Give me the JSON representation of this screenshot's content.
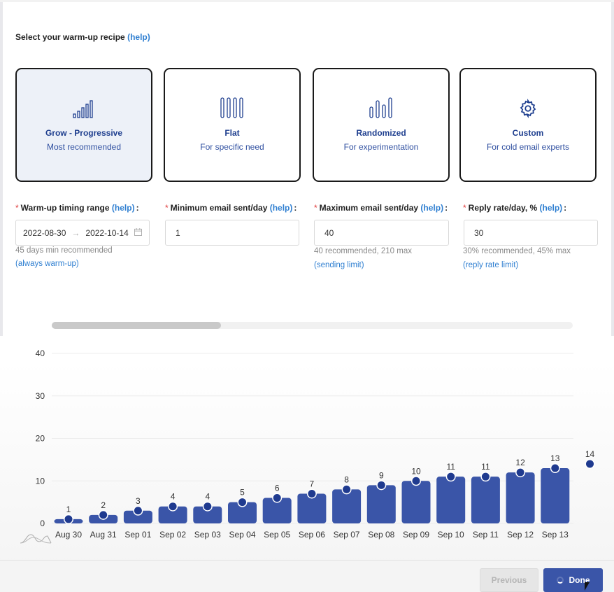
{
  "header": {
    "title": "Select your warm-up recipe",
    "help_label": "(help)"
  },
  "recipes": [
    {
      "title": "Grow - Progressive",
      "subtitle": "Most recommended",
      "icon": "progressive-bars-icon",
      "selected": true
    },
    {
      "title": "Flat",
      "subtitle": "For specific need",
      "icon": "flat-bars-icon",
      "selected": false
    },
    {
      "title": "Randomized",
      "subtitle": "For experimentation",
      "icon": "random-bars-icon",
      "selected": false
    },
    {
      "title": "Custom",
      "subtitle": "For cold email experts",
      "icon": "gear-icon",
      "selected": false
    }
  ],
  "fields": {
    "timing": {
      "label": "Warm-up timing range",
      "help": "(help)",
      "start": "2022-08-30",
      "end": "2022-10-14",
      "hint": "45 days min recommended",
      "hint_link": "(always warm-up)"
    },
    "min_email": {
      "label": "Minimum email sent/day",
      "help": "(help)",
      "value": "1"
    },
    "max_email": {
      "label": "Maximum email sent/day",
      "help": "(help)",
      "value": "40",
      "hint": "40 recommended, 210 max",
      "hint_link": "(sending limit)"
    },
    "reply_rate": {
      "label": "Reply rate/day, %",
      "help": "(help)",
      "value": "30",
      "hint": "30% recommended, 45% max",
      "hint_link": "(reply rate limit)"
    }
  },
  "chart_data": {
    "type": "bar",
    "categories": [
      "Aug 30",
      "Aug 31",
      "Sep 01",
      "Sep 02",
      "Sep 03",
      "Sep 04",
      "Sep 05",
      "Sep 06",
      "Sep 07",
      "Sep 08",
      "Sep 09",
      "Sep 10",
      "Sep 11",
      "Sep 12",
      "Sep 13",
      ""
    ],
    "values": [
      1,
      2,
      3,
      4,
      4,
      5,
      6,
      7,
      8,
      9,
      10,
      11,
      11,
      12,
      13,
      14
    ],
    "point_labels": [
      "1",
      "2",
      "3",
      "4",
      "4",
      "5",
      "6",
      "7",
      "8",
      "9",
      "10",
      "11",
      "11",
      "12",
      "13",
      "14"
    ],
    "yticks": [
      "0",
      "10",
      "20",
      "30",
      "40"
    ],
    "ylim": [
      0,
      40
    ],
    "grid": true,
    "colors": {
      "bar": "#3a55a8",
      "point": "#1f3a8f"
    }
  },
  "buttons": {
    "previous": "Previous",
    "done": "Done"
  },
  "colors": {
    "accent": "#3a55a8",
    "link": "#2f7fd1",
    "required": "#e03b3b"
  }
}
